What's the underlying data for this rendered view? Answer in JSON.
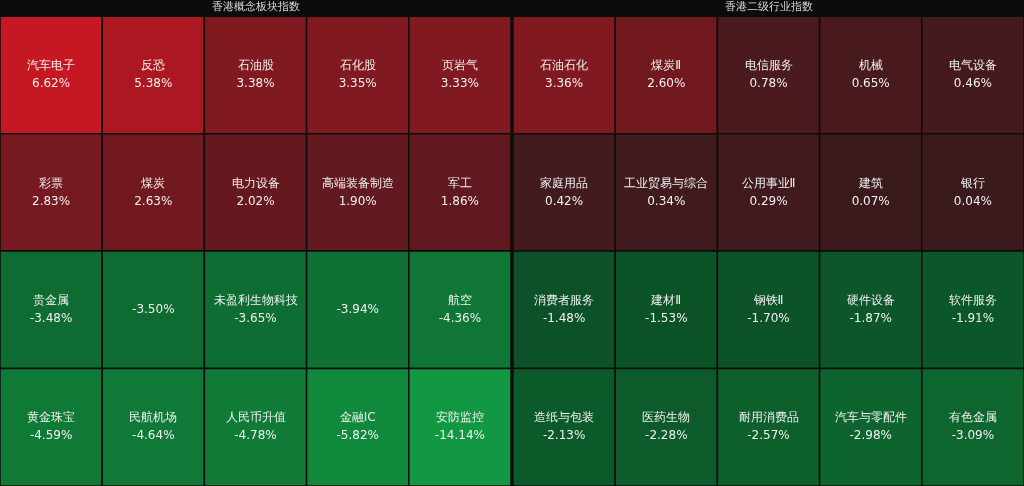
{
  "chart_data": [
    {
      "type": "other",
      "title": "香港概念板块指数",
      "categories": [
        "汽车电子",
        "反恐",
        "石油股",
        "石化股",
        "页岩气",
        "彩票",
        "煤炭",
        "电力设备",
        "高端装备制造",
        "军工",
        "贵金属",
        null,
        "未盈利生物科技",
        null,
        "航空",
        "黄金珠宝",
        "民航机场",
        "人民币升值",
        "金融IC",
        "安防监控"
      ],
      "values": [
        6.62,
        5.38,
        3.38,
        3.35,
        3.33,
        2.83,
        2.63,
        2.02,
        1.9,
        1.86,
        -3.48,
        -3.5,
        -3.65,
        -3.94,
        -4.36,
        -4.59,
        -4.64,
        -4.78,
        -5.82,
        -14.14
      ],
      "value_labels": [
        "6.62%",
        "5.38%",
        "3.38%",
        "3.35%",
        "3.33%",
        "2.83%",
        "2.63%",
        "2.02%",
        "1.90%",
        "1.86%",
        "-3.48%",
        "-3.50%",
        "-3.65%",
        "-3.94%",
        "-4.36%",
        "-4.59%",
        "-4.64%",
        "-4.78%",
        "-5.82%",
        "-14.14%"
      ]
    },
    {
      "type": "other",
      "title": "香港二级行业指数",
      "categories": [
        "石油石化",
        "煤炭Ⅱ",
        "电信服务",
        "机械",
        "电气设备",
        "家庭用品",
        "工业贸易与综合",
        "公用事业Ⅱ",
        "建筑",
        "银行",
        "消费者服务",
        "建材Ⅱ",
        "钢铁Ⅱ",
        "硬件设备",
        "软件服务",
        "造纸与包装",
        "医药生物",
        "耐用消费品",
        "汽车与零配件",
        "有色金属"
      ],
      "values": [
        3.36,
        2.6,
        0.78,
        0.65,
        0.46,
        0.42,
        0.34,
        0.29,
        0.07,
        0.04,
        -1.48,
        -1.53,
        -1.7,
        -1.87,
        -1.91,
        -2.13,
        -2.28,
        -2.57,
        -2.98,
        -3.09
      ],
      "value_labels": [
        "3.36%",
        "2.60%",
        "0.78%",
        "0.65%",
        "0.46%",
        "0.42%",
        "0.34%",
        "0.29%",
        "0.07%",
        "0.04%",
        "-1.48%",
        "-1.53%",
        "-1.70%",
        "-1.87%",
        "-1.91%",
        "-2.13%",
        "-2.28%",
        "-2.57%",
        "-2.98%",
        "-3.09%"
      ]
    }
  ]
}
